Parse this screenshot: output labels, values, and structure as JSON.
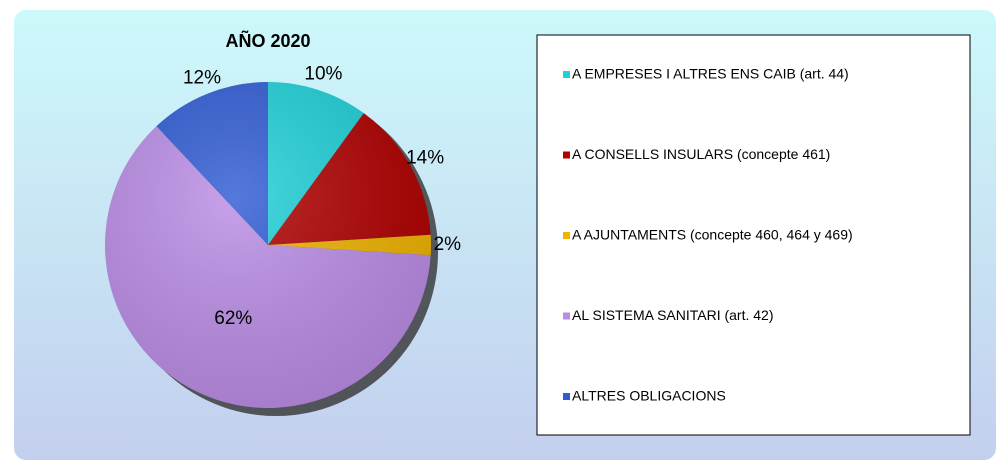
{
  "chart_data": {
    "type": "pie",
    "title": "AÑO 2020",
    "categories": [
      "A EMPRESES I ALTRES ENS CAIB (art. 44)",
      "A CONSELLS INSULARS (concepte 461)",
      "A AJUNTAMENTS (concepte 460, 464 y 469)",
      "AL SISTEMA SANITARI (art. 42)",
      "ALTRES OBLIGACIONS"
    ],
    "values": [
      10,
      14,
      2,
      62,
      12
    ],
    "value_labels": [
      "10%",
      "14%",
      "2%",
      "62%",
      "12%"
    ],
    "colors": [
      "#1fd0d8",
      "#b00000",
      "#efb300",
      "#bb8de6",
      "#2f5bd4"
    ],
    "legend": "right"
  }
}
